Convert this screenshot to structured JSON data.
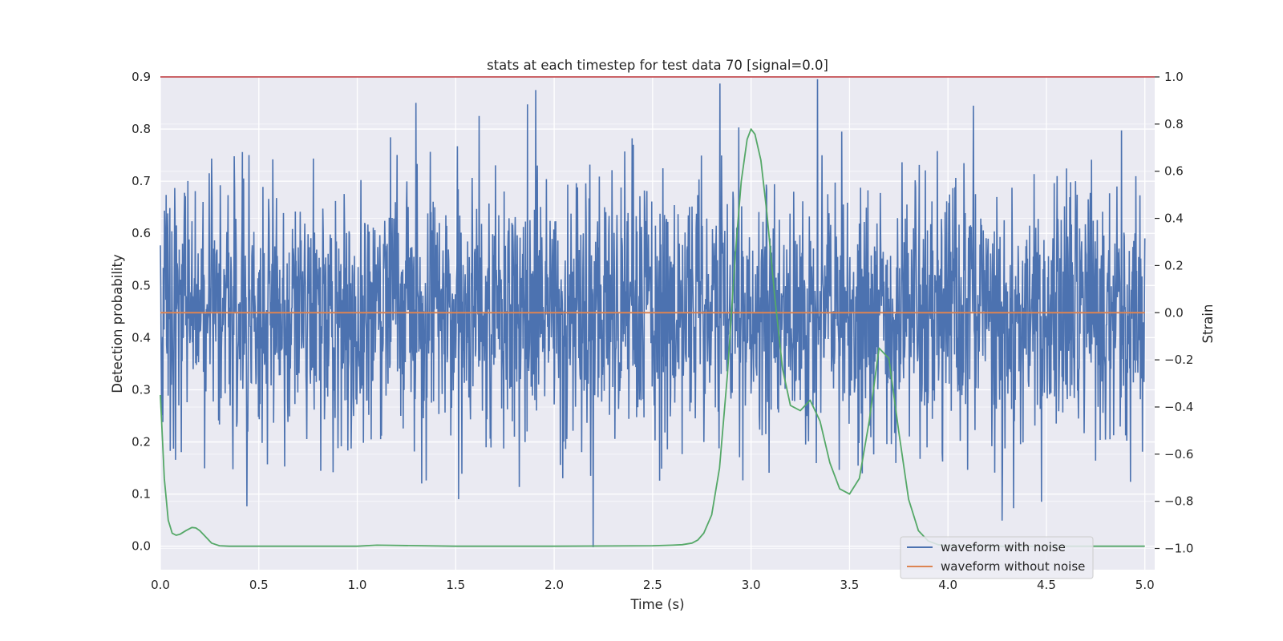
{
  "chart_data": {
    "type": "line",
    "title": "stats at each timestep for test data 70 [signal=0.0]",
    "xlabel": "Time (s)",
    "ylabel": "Detection probability",
    "y2label": "Strain",
    "xlim": [
      0.0,
      5.05
    ],
    "ylim": [
      -0.045,
      0.9
    ],
    "y2lim": [
      -1.09,
      1.0
    ],
    "xticks": [
      "0.0",
      "0.5",
      "1.0",
      "1.5",
      "2.0",
      "2.5",
      "3.0",
      "3.5",
      "4.0",
      "4.5",
      "5.0"
    ],
    "yticks": [
      "0.0",
      "0.1",
      "0.2",
      "0.3",
      "0.4",
      "0.5",
      "0.6",
      "0.7",
      "0.8",
      "0.9"
    ],
    "y2ticks": [
      "−1.0",
      "−0.8",
      "−0.6",
      "−0.4",
      "−0.2",
      "0.0",
      "0.2",
      "0.4",
      "0.6",
      "0.8",
      "1.0"
    ],
    "grid": true,
    "legend_position": "lower-right",
    "threshold": {
      "axis": "left",
      "y": 0.9,
      "color": "#c44e52"
    },
    "series": [
      {
        "name": "waveform with noise",
        "axis": "right",
        "color": "#4c72b0",
        "kind": "noise",
        "x_range": [
          0.0,
          5.0
        ],
        "y_center": 0.0,
        "approx_max": 0.99,
        "approx_min": -1.01
      },
      {
        "name": "waveform without noise",
        "axis": "right",
        "color": "#dd8452",
        "x": [
          0.0,
          5.0
        ],
        "y": [
          0.0,
          0.0
        ]
      },
      {
        "axis": "left",
        "color": "#55a868",
        "x": [
          0.0,
          0.02,
          0.04,
          0.06,
          0.08,
          0.1,
          0.13,
          0.16,
          0.18,
          0.2,
          0.23,
          0.26,
          0.3,
          0.35,
          0.5,
          1.0,
          1.1,
          1.5,
          2.0,
          2.5,
          2.6,
          2.65,
          2.7,
          2.73,
          2.76,
          2.8,
          2.84,
          2.88,
          2.92,
          2.95,
          2.98,
          3.0,
          3.02,
          3.05,
          3.08,
          3.12,
          3.16,
          3.2,
          3.25,
          3.3,
          3.35,
          3.4,
          3.45,
          3.5,
          3.55,
          3.6,
          3.65,
          3.7,
          3.75,
          3.8,
          3.85,
          3.9,
          3.95,
          4.0,
          4.2,
          4.5,
          5.0
        ],
        "y": [
          0.29,
          0.13,
          0.05,
          0.025,
          0.021,
          0.023,
          0.03,
          0.036,
          0.035,
          0.03,
          0.018,
          0.006,
          0.001,
          0.0,
          0.0,
          0.0,
          0.002,
          0.0,
          0.0,
          0.001,
          0.002,
          0.003,
          0.006,
          0.012,
          0.025,
          0.06,
          0.15,
          0.33,
          0.56,
          0.7,
          0.78,
          0.8,
          0.79,
          0.74,
          0.64,
          0.48,
          0.34,
          0.27,
          0.26,
          0.28,
          0.24,
          0.16,
          0.11,
          0.1,
          0.13,
          0.24,
          0.38,
          0.36,
          0.22,
          0.09,
          0.03,
          0.01,
          0.003,
          0.001,
          0.0,
          0.0,
          0.0
        ]
      }
    ]
  }
}
